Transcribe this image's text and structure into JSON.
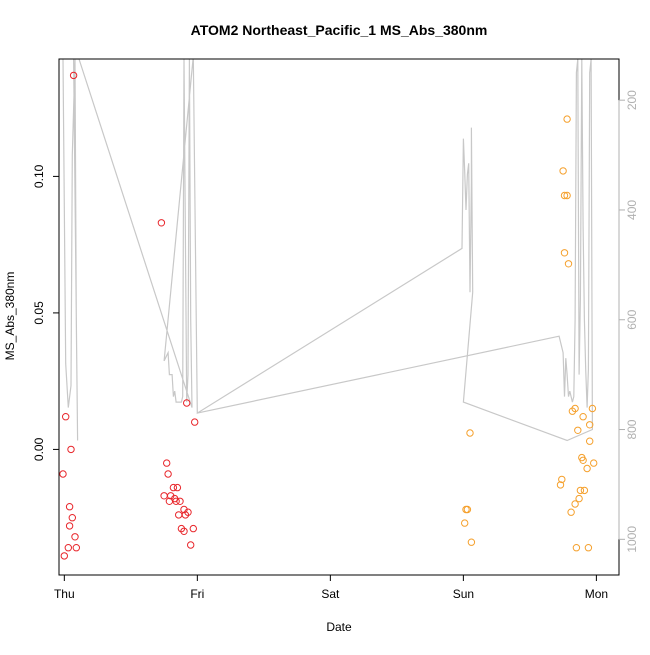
{
  "chart_data": {
    "type": "scatter",
    "title": "ATOM2 Northeast_Pacific_1 MS_Abs_380nm",
    "xlabel": "Date",
    "ylabel": "MS_Abs_380nm",
    "xlim": [
      -0.04,
      4.17
    ],
    "ylim": [
      -0.046,
      0.143
    ],
    "x_ticks": [
      {
        "v": 0,
        "label": "Thu"
      },
      {
        "v": 1,
        "label": "Fri"
      },
      {
        "v": 2,
        "label": "Sat"
      },
      {
        "v": 3,
        "label": "Sun"
      },
      {
        "v": 4,
        "label": "Mon"
      }
    ],
    "y_ticks": [
      {
        "v": 0,
        "label": "0.00"
      },
      {
        "v": 0.05,
        "label": "0.05"
      },
      {
        "v": 0.1,
        "label": "0.10"
      }
    ],
    "y2_axis": {
      "ylim": [
        1065,
        125
      ],
      "ticks": [
        {
          "v": 200,
          "label": "200"
        },
        {
          "v": 400,
          "label": "400"
        },
        {
          "v": 600,
          "label": "600"
        },
        {
          "v": 800,
          "label": "800"
        },
        {
          "v": 1000,
          "label": "1000"
        }
      ],
      "color": "#b0b0b0",
      "side": "right",
      "reversed": true
    },
    "grid": false,
    "series": [
      {
        "color": "#e8262b",
        "points": [
          [
            0.07,
            0.137
          ],
          [
            0.01,
            0.012
          ],
          [
            0.05,
            0.0
          ],
          [
            -0.01,
            -0.009
          ],
          [
            0.04,
            -0.021
          ],
          [
            0.06,
            -0.025
          ],
          [
            0.04,
            -0.028
          ],
          [
            0.08,
            -0.032
          ],
          [
            0.03,
            -0.036
          ],
          [
            0.09,
            -0.036
          ],
          [
            0.0,
            -0.039
          ],
          [
            0.73,
            0.083
          ],
          [
            0.92,
            0.017
          ],
          [
            0.98,
            0.01
          ],
          [
            0.77,
            -0.005
          ],
          [
            0.78,
            -0.009
          ],
          [
            0.75,
            -0.017
          ],
          [
            0.79,
            -0.019
          ],
          [
            0.8,
            -0.017
          ],
          [
            0.82,
            -0.014
          ],
          [
            0.83,
            -0.018
          ],
          [
            0.85,
            -0.014
          ],
          [
            0.84,
            -0.019
          ],
          [
            0.87,
            -0.019
          ],
          [
            0.9,
            -0.022
          ],
          [
            0.91,
            -0.024
          ],
          [
            0.93,
            -0.023
          ],
          [
            0.86,
            -0.024
          ],
          [
            0.88,
            -0.029
          ],
          [
            0.9,
            -0.03
          ],
          [
            0.97,
            -0.029
          ],
          [
            0.95,
            -0.035
          ]
        ]
      },
      {
        "color": "#f5a02c",
        "points": [
          [
            3.05,
            0.006
          ],
          [
            3.02,
            -0.022
          ],
          [
            3.03,
            -0.022
          ],
          [
            3.01,
            -0.027
          ],
          [
            3.06,
            -0.034
          ],
          [
            3.75,
            0.102
          ],
          [
            3.76,
            0.093
          ],
          [
            3.78,
            0.093
          ],
          [
            3.76,
            0.072
          ],
          [
            3.79,
            0.068
          ],
          [
            3.78,
            0.121
          ],
          [
            3.82,
            0.014
          ],
          [
            3.84,
            0.015
          ],
          [
            3.9,
            0.012
          ],
          [
            3.95,
            0.009
          ],
          [
            3.97,
            0.015
          ],
          [
            3.86,
            0.007
          ],
          [
            3.95,
            0.003
          ],
          [
            3.89,
            -0.003
          ],
          [
            3.9,
            -0.004
          ],
          [
            3.93,
            -0.007
          ],
          [
            3.98,
            -0.005
          ],
          [
            3.74,
            -0.011
          ],
          [
            3.73,
            -0.013
          ],
          [
            3.88,
            -0.015
          ],
          [
            3.91,
            -0.015
          ],
          [
            3.87,
            -0.018
          ],
          [
            3.84,
            -0.02
          ],
          [
            3.81,
            -0.023
          ],
          [
            3.85,
            -0.036
          ],
          [
            3.94,
            -0.036
          ]
        ]
      }
    ],
    "depth_line": {
      "color": "#c8c8c8",
      "points": [
        [
          -0.01,
          125
        ],
        [
          0.01,
          680
        ],
        [
          0.03,
          760
        ],
        [
          0.05,
          720
        ],
        [
          0.06,
          300
        ],
        [
          0.08,
          125
        ],
        [
          0.09,
          600
        ],
        [
          0.1,
          820
        ],
        [
          0.1,
          820
        ],
        [
          0.07,
          125
        ],
        [
          0.11,
          125
        ],
        [
          0.96,
          760
        ],
        [
          0.95,
          600
        ],
        [
          0.94,
          125
        ],
        [
          0.93,
          700
        ],
        [
          0.92,
          750
        ],
        [
          0.9,
          125
        ],
        [
          0.89,
          740
        ],
        [
          0.88,
          750
        ],
        [
          0.85,
          750
        ],
        [
          0.84,
          750
        ],
        [
          0.83,
          730
        ],
        [
          0.82,
          740
        ],
        [
          0.81,
          700
        ],
        [
          0.79,
          700
        ],
        [
          0.78,
          660
        ],
        [
          0.75,
          675
        ],
        [
          0.97,
          120
        ],
        [
          1.0,
          770
        ],
        [
          2.99,
          470
        ],
        [
          3.0,
          270
        ],
        [
          3.01,
          330
        ],
        [
          3.02,
          400
        ],
        [
          3.03,
          335
        ],
        [
          3.04,
          315
        ],
        [
          3.05,
          550
        ],
        [
          3.06,
          350
        ],
        [
          3.06,
          250
        ],
        [
          3.07,
          550
        ],
        [
          3.0,
          750
        ],
        [
          3.78,
          820
        ],
        [
          3.97,
          800
        ],
        [
          3.96,
          125
        ],
        [
          3.95,
          150
        ],
        [
          3.94,
          690
        ],
        [
          3.93,
          760
        ],
        [
          3.92,
          690
        ],
        [
          3.91,
          600
        ],
        [
          3.9,
          430
        ],
        [
          3.89,
          125
        ],
        [
          3.88,
          560
        ],
        [
          3.87,
          700
        ],
        [
          3.86,
          125
        ],
        [
          3.85,
          150
        ],
        [
          3.84,
          600
        ],
        [
          3.83,
          740
        ],
        [
          3.82,
          750
        ],
        [
          3.8,
          730
        ],
        [
          3.79,
          740
        ],
        [
          3.78,
          700
        ],
        [
          3.77,
          670
        ],
        [
          3.76,
          740
        ],
        [
          3.75,
          660
        ],
        [
          3.72,
          630
        ],
        [
          1.0,
          770
        ]
      ]
    }
  }
}
